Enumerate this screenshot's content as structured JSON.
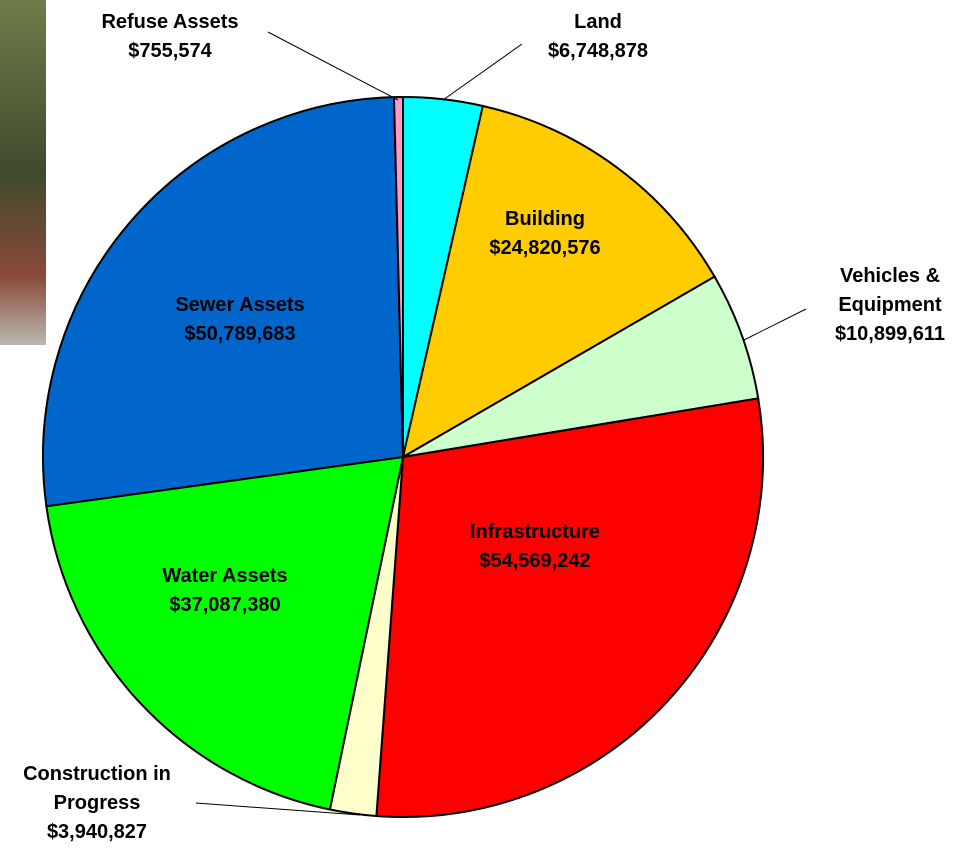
{
  "chart_data": {
    "type": "pie",
    "categories": [
      "Land",
      "Building",
      "Vehicles & Equipment",
      "Infrastructure",
      "Construction in Progress",
      "Water Assets",
      "Sewer Assets",
      "Refuse Assets"
    ],
    "values": [
      6748878,
      24820576,
      10899611,
      54569242,
      3940827,
      37087380,
      50789683,
      755574
    ],
    "value_labels": [
      "$6,748,878",
      "$24,820,576",
      "$10,899,611",
      "$54,569,242",
      "$3,940,827",
      "$37,087,380",
      "$50,789,683",
      "$755,574"
    ],
    "colors": [
      "#00ffff",
      "#ffcc00",
      "#ccffcc",
      "#ff0000",
      "#ffffcc",
      "#00ff00",
      "#0066cc",
      "#ff99cc"
    ]
  }
}
